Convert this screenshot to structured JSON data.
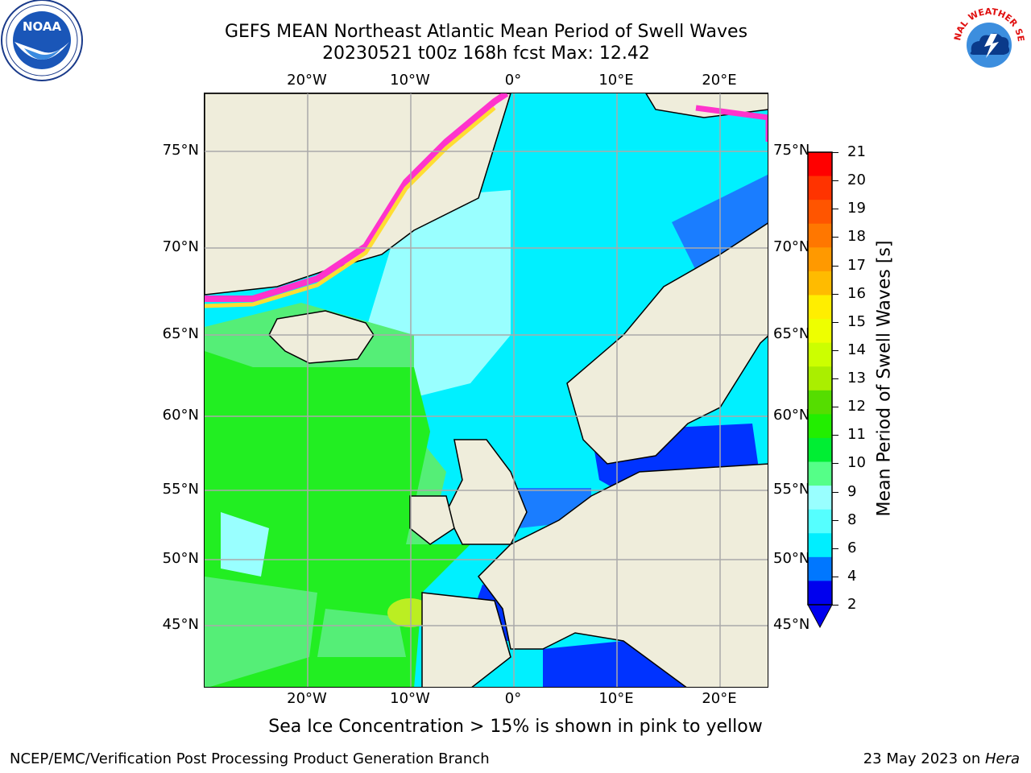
{
  "header": {
    "title_line1": "GEFS MEAN Northeast Atlantic Mean Period of Swell Waves",
    "title_line2": "20230521 t00z 168h fcst   Max: 12.42"
  },
  "map": {
    "x_ticks": [
      "20°W",
      "10°W",
      "0°",
      "10°E",
      "20°E"
    ],
    "y_ticks": [
      "75°N",
      "70°N",
      "65°N",
      "60°N",
      "55°N",
      "50°N",
      "45°N"
    ],
    "ocean_colors": {
      "blue": "#0033ff",
      "midblue": "#1a7dff",
      "cyan": "#00f0ff",
      "lightcyan": "#66ffff",
      "paleaqua": "#99ffff",
      "lightgreen": "#55ee77",
      "green": "#22ee22",
      "yellowgreen": "#bbee22",
      "land": "#efeddb",
      "ice_pink": "#ff33cc",
      "ice_orange": "#ff9933",
      "ice_yellow": "#ffdd33"
    }
  },
  "colorbar": {
    "label": "Mean Period of Swell Waves [s]",
    "tick_labels": [
      "21",
      "20",
      "19",
      "18",
      "17",
      "16",
      "15",
      "14",
      "13",
      "12",
      "11",
      "10",
      "9",
      "8",
      "6",
      "4",
      "2"
    ],
    "colors": [
      "#ff0000",
      "#ff3300",
      "#ff5500",
      "#ff7700",
      "#ff9900",
      "#ffbb00",
      "#ffee00",
      "#eeff00",
      "#ccff00",
      "#aaee00",
      "#55dd00",
      "#22ee00",
      "#00ee33",
      "#55ff88",
      "#99ffff",
      "#55ffff",
      "#00eeff",
      "#0077ff",
      "#0000ee"
    ]
  },
  "footer": {
    "note": "Sea Ice Concentration > 15% is shown in pink to yellow",
    "credit_left": "NCEP/EMC/Verification Post Processing Product Generation Branch",
    "credit_right_prefix": "23 May 2023 on ",
    "credit_right_machine": "Hera"
  },
  "logos": {
    "left_logo_text": "NOAA",
    "right_logo_text": "NATIONAL WEATHER SERVICE"
  }
}
